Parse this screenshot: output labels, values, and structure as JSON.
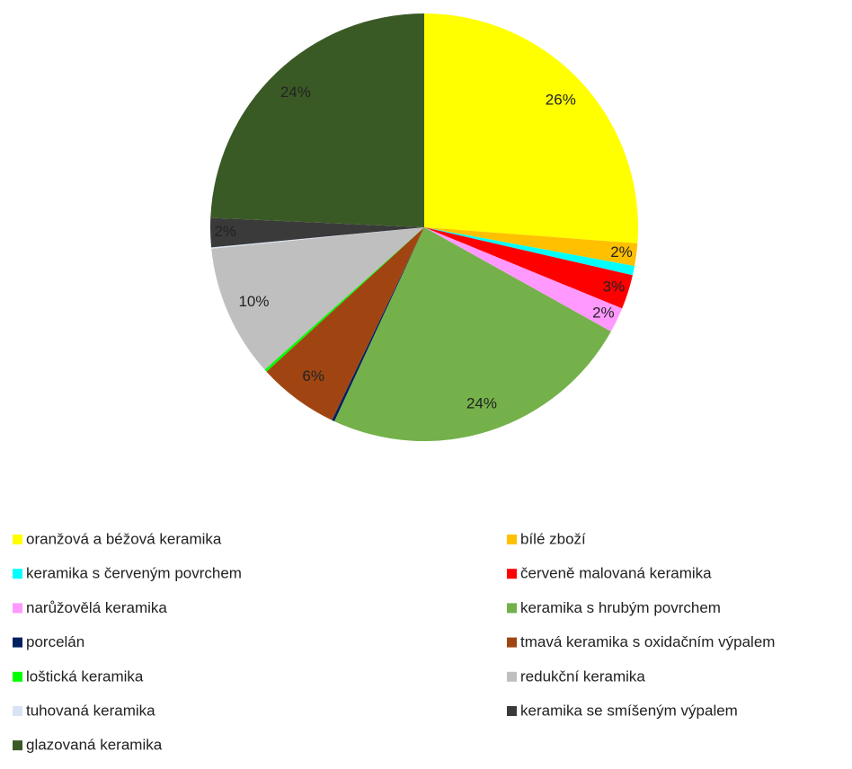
{
  "chart_data": {
    "type": "pie",
    "categories": [
      "oranžová a béžová keramika",
      "bílé zboží",
      "keramika s červeným povrchem",
      "červeně malovaná keramika",
      "narůžovělá keramika",
      "keramika s hrubým povrchem",
      "porcelán",
      "tmavá keramika s oxidačním výpalem",
      "loštická keramika",
      "redukční keramika",
      "tuhovaná keramika",
      "keramika se smíšeným výpalem",
      "glazovaná keramika"
    ],
    "values": [
      26.2,
      1.7,
      0.7,
      2.6,
      1.9,
      23.8,
      0.2,
      6.1,
      0.2,
      10.0,
      0.1,
      2.2,
      24.3
    ],
    "value_labels": [
      "26%",
      "2%",
      null,
      "3%",
      "2%",
      "24%",
      null,
      "6%",
      null,
      "10%",
      null,
      "2%",
      "24%"
    ],
    "colors": [
      "#ffff00",
      "#ffc000",
      "#00ffff",
      "#ff0000",
      "#ff99ff",
      "#74b14a",
      "#002060",
      "#a04512",
      "#00ff00",
      "#bfbfbf",
      "#dae3f3",
      "#3a3a3a",
      "#3a5a25"
    ]
  }
}
